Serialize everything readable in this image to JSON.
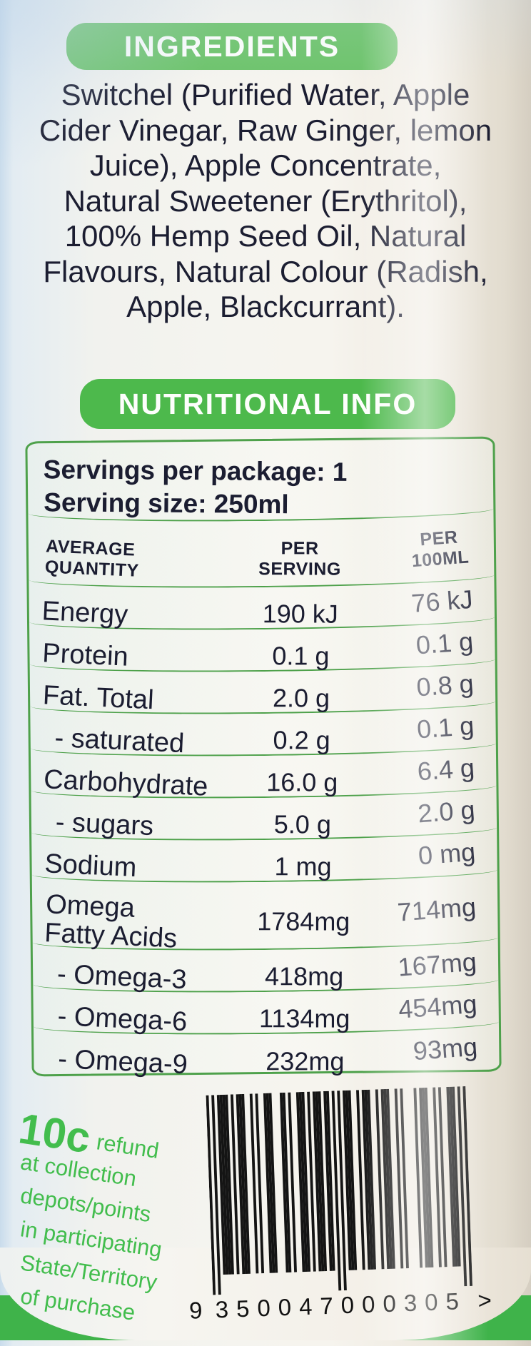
{
  "ingredients": {
    "header": "INGREDIENTS",
    "lines": [
      "Switchel (Purified Water, Apple",
      "Cider Vinegar, Raw Ginger, lemon",
      "Juice), Apple Concentrate,",
      "Natural Sweetener (Erythritol),",
      "100% Hemp Seed Oil, Natural",
      "Flavours, Natural Colour (Radish,",
      "Apple, Blackcurrant)."
    ]
  },
  "nutrition": {
    "header": "NUTRITIONAL INFO",
    "servings_per_package": "Servings per package: 1",
    "serving_size": "Serving size: 250ml",
    "columns": [
      "AVERAGE\nQUANTITY",
      "PER\nSERVING",
      "PER\n100ML"
    ],
    "rows": [
      {
        "name": "Energy",
        "per_serving": "190 kJ",
        "per_100ml": "76 kJ"
      },
      {
        "name": "Protein",
        "per_serving": "0.1 g",
        "per_100ml": "0.1 g"
      },
      {
        "name": "Fat. Total",
        "per_serving": "2.0 g",
        "per_100ml": "0.8 g"
      },
      {
        "name": "- saturated",
        "per_serving": "0.2 g",
        "per_100ml": "0.1 g",
        "indent": true
      },
      {
        "name": "Carbohydrate",
        "per_serving": "16.0 g",
        "per_100ml": "6.4 g"
      },
      {
        "name": "- sugars",
        "per_serving": "5.0 g",
        "per_100ml": "2.0 g",
        "indent": true
      },
      {
        "name": "Sodium",
        "per_serving": "1 mg",
        "per_100ml": "0 mg"
      },
      {
        "name": "Omega\nFatty Acids",
        "per_serving": "1784mg",
        "per_100ml": "714mg",
        "tall": true
      },
      {
        "name": "- Omega-3",
        "per_serving": "418mg",
        "per_100ml": "167mg",
        "indent": true
      },
      {
        "name": "- Omega-6",
        "per_serving": "1134mg",
        "per_100ml": "454mg",
        "indent": true
      },
      {
        "name": "- Omega-9",
        "per_serving": "232mg",
        "per_100ml": "93mg",
        "indent": true
      }
    ]
  },
  "refund": {
    "amount": "10c",
    "lines": [
      "refund",
      "at collection",
      "depots/points",
      "in participating",
      "State/Territory",
      "of purchase"
    ]
  },
  "barcode": {
    "value": "9350047000305",
    "display_groups": [
      "9",
      "350047",
      "000305"
    ],
    "suffix": ">"
  },
  "colors": {
    "pill_green_light": "#6ec46c",
    "pill_green": "#4db94c",
    "table_border_green": "#4ea14b",
    "refund_green": "#42bd4d",
    "band_green": "#3fb34a",
    "text_dark": "#1b1d31"
  }
}
